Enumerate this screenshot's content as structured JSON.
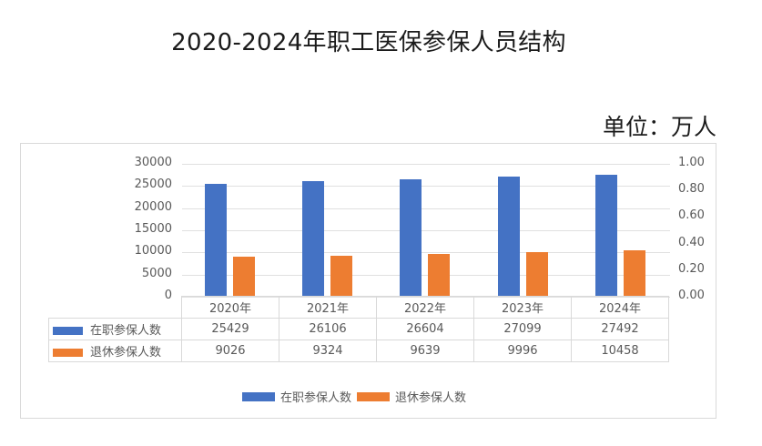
{
  "header": {
    "title": "2020-2024年职工医保参保人员结构",
    "unit": "单位：万人"
  },
  "colors": {
    "employed": "#4472c4",
    "retired": "#ed7d31",
    "grid": "#e0e0e0",
    "axis_text": "#595959"
  },
  "axes": {
    "left_ticks": [
      "30000",
      "25000",
      "20000",
      "15000",
      "10000",
      "5000",
      "0"
    ],
    "right_ticks": [
      "1.00",
      "0.80",
      "0.60",
      "0.40",
      "0.20",
      "0.00"
    ]
  },
  "table": {
    "columns": [
      "2020年",
      "2021年",
      "2022年",
      "2023年",
      "2024年"
    ],
    "rows": [
      {
        "label": "在职参保人数",
        "values": [
          "25429",
          "26106",
          "26604",
          "27099",
          "27492"
        ]
      },
      {
        "label": "退休参保人数",
        "values": [
          "9026",
          "9324",
          "9639",
          "9996",
          "10458"
        ]
      }
    ]
  },
  "legend": {
    "items": [
      "在职参保人数",
      "退休参保人数"
    ]
  },
  "chart_data": {
    "type": "bar",
    "title": "2020-2024年职工医保参保人员结构",
    "subtitle": "单位：万人",
    "categories": [
      "2020年",
      "2021年",
      "2022年",
      "2023年",
      "2024年"
    ],
    "series": [
      {
        "name": "在职参保人数",
        "color": "#4472c4",
        "values": [
          25429,
          26106,
          26604,
          27099,
          27492
        ]
      },
      {
        "name": "退休参保人数",
        "color": "#ed7d31",
        "values": [
          9026,
          9324,
          9639,
          9996,
          10458
        ]
      }
    ],
    "xlabel": "",
    "ylabel": "",
    "ylim": [
      0,
      30000
    ],
    "y2lim": [
      0,
      1.0
    ],
    "grid": true,
    "legend_position": "bottom",
    "data_table": true
  }
}
